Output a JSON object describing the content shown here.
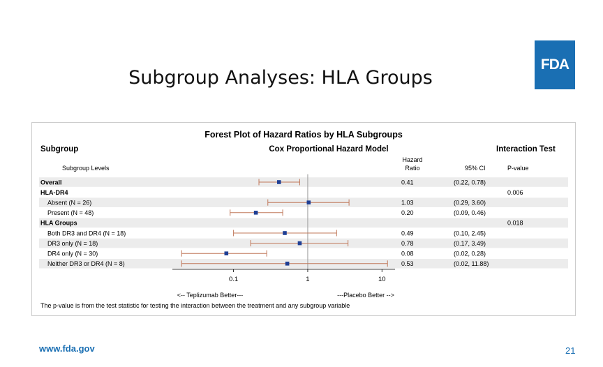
{
  "slide": {
    "title": "Subgroup Analyses: HLA Groups",
    "logo_text": "FDA",
    "footer_url": "www.fda.gov",
    "page_number": "21",
    "colors": {
      "fda_blue": "#1a6fb3",
      "ci_line": "#c0785a",
      "point": "#1f3f94",
      "band": "#ececec",
      "ref_line": "#999999"
    }
  },
  "chart_data": {
    "type": "forest",
    "title": "Forest Plot of Hazard Ratios by HLA Subgroups",
    "subtitle": "Cox Proportional Hazard Model",
    "column_headers": {
      "subgroup": "Subgroup",
      "levels": "Subgroup Levels",
      "interaction_test": "Interaction Test",
      "hr_line1": "Hazard",
      "hr_line2": "Ratio",
      "ci": "95% CI",
      "pvalue": "P-value"
    },
    "x_scale": "log",
    "xlim": [
      0.015,
      15
    ],
    "x_ticks": [
      {
        "value": 0.1,
        "label": "0.1"
      },
      {
        "value": 1,
        "label": "1"
      },
      {
        "value": 10,
        "label": "10"
      }
    ],
    "reference_line": 1,
    "left_note": "<-- Teplizumab Better---",
    "right_note": "---Placebo Better -->",
    "footnote": "The p-value is from the test statistic for testing the interaction between the treatment and any subgroup variable",
    "rows": [
      {
        "label": "Overall",
        "bold": true,
        "indent": false,
        "hr": 0.41,
        "lower": 0.22,
        "upper": 0.78,
        "hr_text": "0.41",
        "ci_text": "(0.22, 0.78)",
        "p_text": "",
        "band": true
      },
      {
        "label": "HLA-DR4",
        "bold": true,
        "indent": false,
        "hr": null,
        "lower": null,
        "upper": null,
        "hr_text": "",
        "ci_text": "",
        "p_text": "0.006",
        "band": false
      },
      {
        "label": "Absent (N = 26)",
        "bold": false,
        "indent": true,
        "hr": 1.03,
        "lower": 0.29,
        "upper": 3.6,
        "hr_text": "1.03",
        "ci_text": "(0.29, 3.60)",
        "p_text": "",
        "band": true
      },
      {
        "label": "Present (N = 48)",
        "bold": false,
        "indent": true,
        "hr": 0.2,
        "lower": 0.09,
        "upper": 0.46,
        "hr_text": "0.20",
        "ci_text": "(0.09, 0.46)",
        "p_text": "",
        "band": false
      },
      {
        "label": "HLA Groups",
        "bold": true,
        "indent": false,
        "hr": null,
        "lower": null,
        "upper": null,
        "hr_text": "",
        "ci_text": "",
        "p_text": "0.018",
        "band": true
      },
      {
        "label": "Both DR3 and DR4 (N = 18)",
        "bold": false,
        "indent": true,
        "hr": 0.49,
        "lower": 0.1,
        "upper": 2.45,
        "hr_text": "0.49",
        "ci_text": "(0.10, 2.45)",
        "p_text": "",
        "band": false
      },
      {
        "label": "DR3 only (N = 18)",
        "bold": false,
        "indent": true,
        "hr": 0.78,
        "lower": 0.17,
        "upper": 3.49,
        "hr_text": "0.78",
        "ci_text": "(0.17, 3.49)",
        "p_text": "",
        "band": true
      },
      {
        "label": "DR4 only (N = 30)",
        "bold": false,
        "indent": true,
        "hr": 0.08,
        "lower": 0.02,
        "upper": 0.28,
        "hr_text": "0.08",
        "ci_text": "(0.02, 0.28)",
        "p_text": "",
        "band": false
      },
      {
        "label": "Neither DR3 or DR4 (N = 8)",
        "bold": false,
        "indent": true,
        "hr": 0.53,
        "lower": 0.02,
        "upper": 11.88,
        "hr_text": "0.53",
        "ci_text": "(0.02, 11.88)",
        "p_text": "",
        "band": true
      }
    ]
  }
}
